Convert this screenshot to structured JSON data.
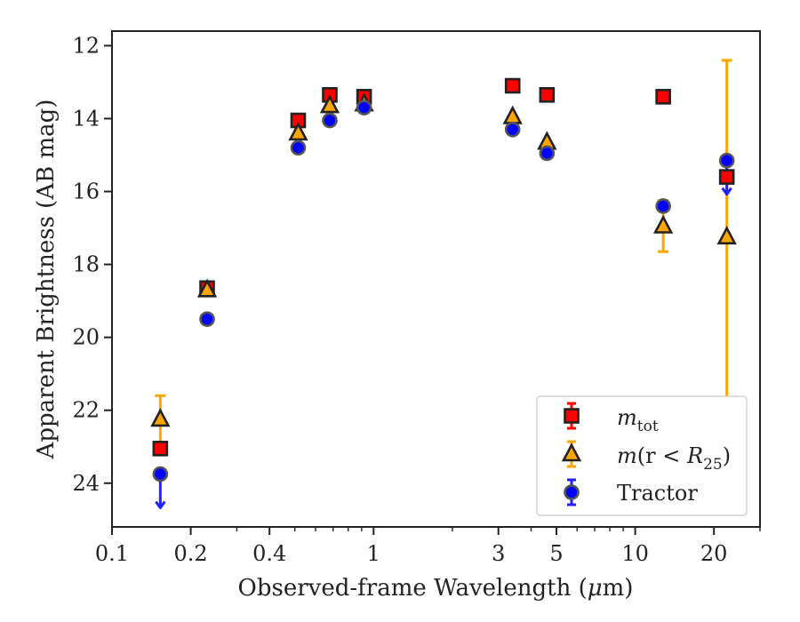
{
  "chart_data": {
    "type": "scatter",
    "title": "",
    "xlabel_prefix": "Observed-frame Wavelength (",
    "xlabel_mu": "μ",
    "xlabel_suffix": "m)",
    "ylabel": "Apparent Brightness (AB mag)",
    "xscale": "log",
    "yaxis_inverted": true,
    "xlim": [
      0.1,
      30
    ],
    "ylim": [
      25.2,
      11.6
    ],
    "x_ticks": [
      0.1,
      0.2,
      0.4,
      1,
      3,
      5,
      10,
      20
    ],
    "x_tick_labels": [
      "0.1",
      "0.2",
      "0.4",
      "1",
      "3",
      "5",
      "10",
      "20"
    ],
    "y_ticks": [
      12,
      14,
      16,
      18,
      20,
      22,
      24
    ],
    "y_tick_labels": [
      "12",
      "14",
      "16",
      "18",
      "20",
      "22",
      "24"
    ],
    "legend_position": "lower right",
    "series": [
      {
        "name": "m_tot",
        "label_main": "m",
        "label_sub": "tot",
        "marker": "square",
        "color": "#ff0000",
        "errcolor": "#ff0000",
        "points": [
          {
            "x": 0.153,
            "y": 23.05
          },
          {
            "x": 0.231,
            "y": 18.65
          },
          {
            "x": 0.515,
            "y": 14.05
          },
          {
            "x": 0.68,
            "y": 13.35
          },
          {
            "x": 0.92,
            "y": 13.4
          },
          {
            "x": 3.4,
            "y": 13.1
          },
          {
            "x": 4.6,
            "y": 13.35
          },
          {
            "x": 12.8,
            "y": 13.4
          },
          {
            "x": 22.4,
            "y": 15.6
          }
        ]
      },
      {
        "name": "m(r<R25)",
        "label_pre": "m",
        "label_mid": "(r",
        "label_lt": " < ",
        "label_R": "R",
        "label_sub": "25",
        "label_end": ")",
        "marker": "triangle",
        "color": "#ffa500",
        "errcolor": "#ffa500",
        "points": [
          {
            "x": 0.153,
            "y": 22.25,
            "err": 0.65
          },
          {
            "x": 0.231,
            "y": 18.7
          },
          {
            "x": 0.515,
            "y": 14.4
          },
          {
            "x": 0.68,
            "y": 13.65
          },
          {
            "x": 0.92,
            "y": 13.6
          },
          {
            "x": 3.4,
            "y": 13.95
          },
          {
            "x": 4.6,
            "y": 14.65
          },
          {
            "x": 12.8,
            "y": 16.95,
            "err": 0.7
          },
          {
            "x": 22.4,
            "y": 17.25,
            "err_low": 4.85,
            "err_high": 4.9
          }
        ]
      },
      {
        "name": "Tractor",
        "label": "Tractor",
        "marker": "circle",
        "color": "#0000ff",
        "errcolor": "#2222ff",
        "points": [
          {
            "x": 0.153,
            "y": 23.75,
            "upper_limit": true
          },
          {
            "x": 0.231,
            "y": 19.5
          },
          {
            "x": 0.515,
            "y": 14.8
          },
          {
            "x": 0.68,
            "y": 14.05
          },
          {
            "x": 0.92,
            "y": 13.7
          },
          {
            "x": 3.4,
            "y": 14.3
          },
          {
            "x": 4.6,
            "y": 14.95
          },
          {
            "x": 12.8,
            "y": 16.4
          },
          {
            "x": 22.4,
            "y": 15.15,
            "upper_limit": true
          }
        ]
      }
    ]
  }
}
